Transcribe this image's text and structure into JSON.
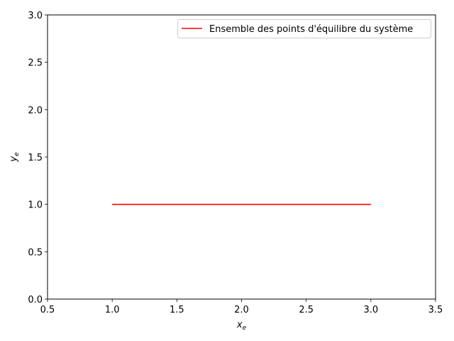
{
  "chart_data": {
    "type": "line",
    "title": "",
    "xlabel": {
      "base": "x",
      "sub": "e"
    },
    "ylabel": {
      "base": "y",
      "sub": "e"
    },
    "xlim": [
      0.5,
      3.5
    ],
    "ylim": [
      0.0,
      3.0
    ],
    "xticks": [
      "0.5",
      "1.0",
      "1.5",
      "2.0",
      "2.5",
      "3.0",
      "3.5"
    ],
    "yticks": [
      "0.0",
      "0.5",
      "1.0",
      "1.5",
      "2.0",
      "2.5",
      "3.0"
    ],
    "grid": false,
    "legend_position": "top-right",
    "series": [
      {
        "name": "Ensemble des points d'équilibre du système",
        "color": "#ff0000",
        "x": [
          1.0,
          3.0
        ],
        "y": [
          1.0,
          1.0
        ]
      }
    ]
  }
}
